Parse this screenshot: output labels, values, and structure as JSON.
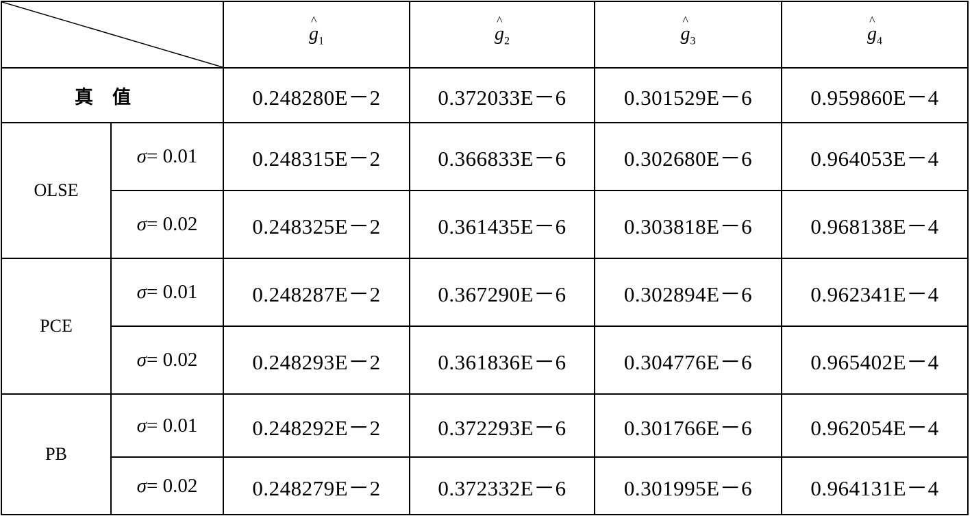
{
  "header": {
    "columns": [
      {
        "symbol": "g",
        "sub": "1"
      },
      {
        "symbol": "g",
        "sub": "2"
      },
      {
        "symbol": "g",
        "sub": "3"
      },
      {
        "symbol": "g",
        "sub": "4"
      }
    ]
  },
  "true_row": {
    "label": "真值",
    "values": [
      "0.248280E－2",
      "0.372033E－6",
      "0.301529E－6",
      "0.959860E－4"
    ]
  },
  "groups": [
    {
      "method": "OLSE",
      "rows": [
        {
          "sigma_symbol": "σ",
          "sigma": "= 0.01",
          "values": [
            "0.248315E－2",
            "0.366833E－6",
            "0.302680E－6",
            "0.964053E－4"
          ]
        },
        {
          "sigma_symbol": "σ",
          "sigma": "= 0.02",
          "values": [
            "0.248325E－2",
            "0.361435E－6",
            "0.303818E－6",
            "0.968138E－4"
          ]
        }
      ]
    },
    {
      "method": "PCE",
      "rows": [
        {
          "sigma_symbol": "σ",
          "sigma": "= 0.01",
          "values": [
            "0.248287E－2",
            "0.367290E－6",
            "0.302894E－6",
            "0.962341E－4"
          ]
        },
        {
          "sigma_symbol": "σ",
          "sigma": "= 0.02",
          "values": [
            "0.248293E－2",
            "0.361836E－6",
            "0.304776E－6",
            "0.965402E－4"
          ]
        }
      ]
    },
    {
      "method": "PB",
      "rows": [
        {
          "sigma_symbol": "σ",
          "sigma": "= 0.01",
          "values": [
            "0.248292E－2",
            "0.372293E－6",
            "0.301766E－6",
            "0.962054E－4"
          ]
        },
        {
          "sigma_symbol": "σ",
          "sigma": "= 0.02",
          "values": [
            "0.248279E－2",
            "0.372332E－6",
            "0.301995E－6",
            "0.964131E－4"
          ]
        }
      ]
    }
  ]
}
